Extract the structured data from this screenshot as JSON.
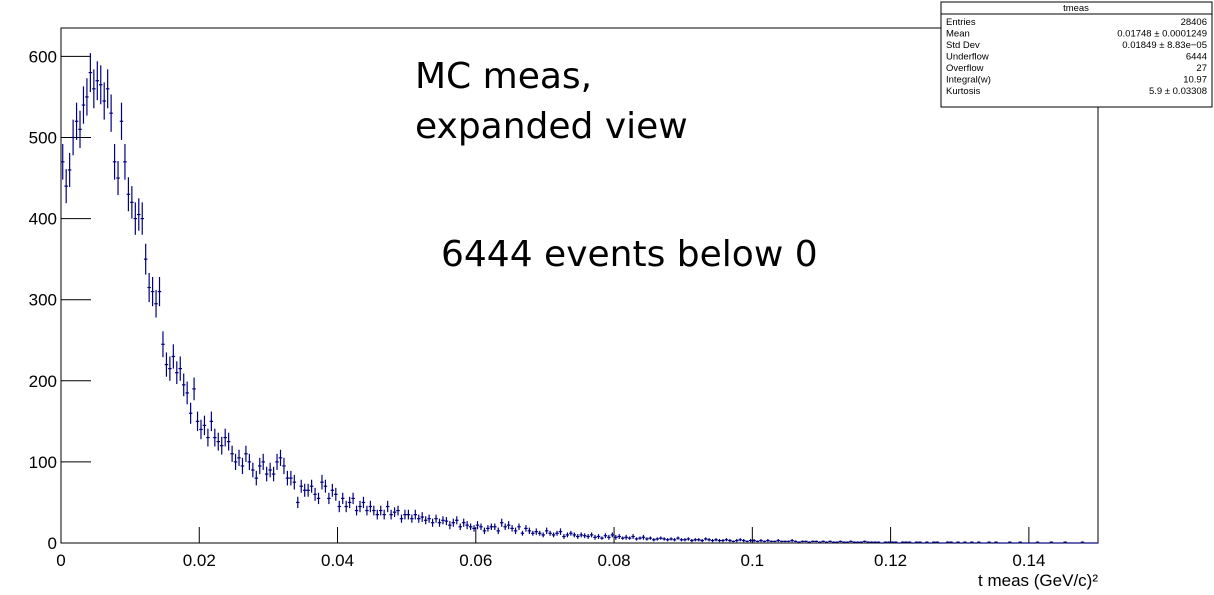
{
  "chart_data": {
    "type": "histogram",
    "annotations": [
      "MC meas,",
      "expanded view",
      "6444 events below 0"
    ],
    "xlabel": "t meas (GeV/c)²",
    "color": "#000080",
    "xlim": [
      0,
      0.15
    ],
    "xticks": [
      0,
      0.02,
      0.04,
      0.06,
      0.08,
      0.1,
      0.12,
      0.14
    ],
    "ylim": [
      0,
      635
    ],
    "yticks": [
      0,
      100,
      200,
      300,
      400,
      500,
      600
    ],
    "stats": {
      "title": "tmeas",
      "rows": [
        [
          "Entries",
          28406
        ],
        [
          "Mean",
          "0.01748 ± 0.0001249"
        ],
        [
          "Std Dev",
          "0.01849 ± 8.83e−05"
        ],
        [
          "Underflow",
          6444
        ],
        [
          "Overflow",
          27
        ],
        [
          "Integral(w)",
          10.97
        ],
        [
          "Kurtosis",
          "5.9 ± 0.03308"
        ]
      ]
    },
    "bins": [
      0,
      0.0005,
      0.001,
      0.0015,
      0.002,
      0.0025,
      0.003,
      0.0035,
      0.004,
      0.0045,
      0.005,
      0.0055,
      0.006,
      0.0065,
      0.007,
      0.0075,
      0.008,
      0.0085,
      0.009,
      0.0095,
      0.01,
      0.0105,
      0.011,
      0.0115,
      0.012,
      0.0125,
      0.013,
      0.0135,
      0.014,
      0.0145,
      0.015,
      0.0155,
      0.016,
      0.0165,
      0.017,
      0.0175,
      0.018,
      0.0185,
      0.019,
      0.0195,
      0.02,
      0.0205,
      0.021,
      0.0215,
      0.022,
      0.0225,
      0.023,
      0.0235,
      0.024,
      0.0245,
      0.025,
      0.0255,
      0.026,
      0.0265,
      0.027,
      0.0275,
      0.028,
      0.0285,
      0.029,
      0.0295,
      0.03,
      0.0305,
      0.031,
      0.0315,
      0.032,
      0.0325,
      0.033,
      0.0335,
      0.034,
      0.0345,
      0.035,
      0.0355,
      0.036,
      0.0365,
      0.037,
      0.0375,
      0.038,
      0.0385,
      0.039,
      0.0395,
      0.04,
      0.0405,
      0.041,
      0.0415,
      0.042,
      0.0425,
      0.043,
      0.0435,
      0.044,
      0.0445,
      0.045,
      0.0455,
      0.046,
      0.0465,
      0.047,
      0.0475,
      0.048,
      0.0485,
      0.049,
      0.0495,
      0.05,
      0.0505,
      0.051,
      0.0515,
      0.052,
      0.0525,
      0.053,
      0.0535,
      0.054,
      0.0545,
      0.055,
      0.0555,
      0.056,
      0.0565,
      0.057,
      0.0575,
      0.058,
      0.0585,
      0.059,
      0.0595,
      0.06,
      0.0605,
      0.061,
      0.0615,
      0.062,
      0.0625,
      0.063,
      0.0635,
      0.064,
      0.0645,
      0.065,
      0.0655,
      0.066,
      0.0665,
      0.067,
      0.0675,
      0.068,
      0.0685,
      0.069,
      0.0695,
      0.07,
      0.0705,
      0.071,
      0.0715,
      0.072,
      0.0725,
      0.073,
      0.0735,
      0.074,
      0.0745,
      0.075,
      0.0755,
      0.076,
      0.0765,
      0.077,
      0.0775,
      0.078,
      0.0785,
      0.079,
      0.0795,
      0.08,
      0.0805,
      0.081,
      0.0815,
      0.082,
      0.0825,
      0.083,
      0.0835,
      0.084,
      0.0845,
      0.085,
      0.0855,
      0.086,
      0.0865,
      0.087,
      0.0875,
      0.088,
      0.0885,
      0.089,
      0.0895,
      0.09,
      0.0905,
      0.091,
      0.0915,
      0.092,
      0.0925,
      0.093,
      0.0935,
      0.094,
      0.0945,
      0.095,
      0.0955,
      0.096,
      0.0965,
      0.097,
      0.0975,
      0.098,
      0.0985,
      0.099,
      0.0995,
      0.1,
      0.1005,
      0.101,
      0.1015,
      0.102,
      0.1025,
      0.103,
      0.1035,
      0.104,
      0.1045,
      0.105,
      0.1055,
      0.106,
      0.1065,
      0.107,
      0.1075,
      0.108,
      0.1085,
      0.109,
      0.1095,
      0.11,
      0.1105,
      0.111,
      0.1115,
      0.112,
      0.1125,
      0.113,
      0.1135,
      0.114,
      0.1145,
      0.115,
      0.1155,
      0.116,
      0.1165,
      0.117,
      0.1175,
      0.118,
      0.1185,
      0.119,
      0.1195,
      0.12,
      0.1205,
      0.121,
      0.1215,
      0.122,
      0.1225,
      0.123,
      0.1235,
      0.124,
      0.1245,
      0.125,
      0.1255,
      0.126,
      0.1265,
      0.127,
      0.1275,
      0.128,
      0.1285,
      0.129,
      0.1295,
      0.13,
      0.1305,
      0.131,
      0.1315,
      0.132,
      0.1325,
      0.133,
      0.1335,
      0.134,
      0.1345,
      0.135,
      0.1355,
      0.136,
      0.1365,
      0.137,
      0.1375,
      0.138,
      0.1385,
      0.139,
      0.1395,
      0.14,
      0.1405,
      0.141,
      0.1415,
      0.142,
      0.1425,
      0.143,
      0.1435,
      0.144,
      0.1445,
      0.145,
      0.1455,
      0.146,
      0.1465,
      0.147,
      0.1475,
      0.148,
      0.1485,
      0.149,
      0.1495,
      0.15
    ],
    "values": [
      470,
      440,
      460,
      500,
      520,
      510,
      540,
      550,
      580,
      560,
      570,
      565,
      545,
      560,
      530,
      470,
      450,
      520,
      470,
      430,
      420,
      400,
      405,
      400,
      350,
      315,
      310,
      295,
      310,
      245,
      220,
      215,
      230,
      210,
      215,
      195,
      185,
      160,
      190,
      150,
      140,
      145,
      130,
      150,
      130,
      125,
      120,
      130,
      125,
      110,
      100,
      105,
      95,
      110,
      100,
      90,
      80,
      95,
      100,
      85,
      90,
      85,
      100,
      105,
      95,
      80,
      80,
      75,
      50,
      70,
      65,
      65,
      70,
      60,
      55,
      75,
      70,
      55,
      65,
      60,
      45,
      55,
      45,
      50,
      55,
      40,
      45,
      50,
      40,
      45,
      40,
      35,
      40,
      35,
      45,
      35,
      38,
      40,
      30,
      35,
      35,
      30,
      35,
      30,
      32,
      28,
      30,
      25,
      30,
      25,
      28,
      27,
      22,
      25,
      28,
      20,
      25,
      22,
      20,
      18,
      22,
      20,
      15,
      18,
      20,
      20,
      15,
      25,
      20,
      22,
      18,
      15,
      20,
      12,
      18,
      15,
      12,
      14,
      12,
      10,
      15,
      12,
      10,
      12,
      14,
      8,
      10,
      12,
      10,
      8,
      10,
      9,
      8,
      10,
      7,
      8,
      6,
      9,
      7,
      10,
      7,
      8,
      6,
      7,
      6,
      8,
      5,
      6,
      7,
      5,
      6,
      4,
      5,
      6,
      5,
      4,
      5,
      4,
      6,
      4,
      4,
      5,
      3,
      4,
      4,
      3,
      5,
      4,
      3,
      4,
      3,
      3,
      4,
      3,
      2,
      3,
      4,
      3,
      2,
      3,
      3,
      2,
      3,
      2,
      3,
      2,
      2,
      3,
      2,
      2,
      2,
      3,
      2,
      1,
      2,
      2,
      1,
      2,
      2,
      1,
      2,
      1,
      2,
      1,
      1,
      2,
      1,
      1,
      2,
      1,
      1,
      1,
      2,
      1,
      1,
      1,
      1,
      0,
      1,
      1,
      1,
      1,
      0,
      1,
      1,
      1,
      0,
      1,
      1,
      0,
      1,
      0,
      1,
      1,
      0,
      0,
      1,
      1,
      0,
      1,
      0,
      1,
      0,
      1,
      0,
      1,
      0,
      0,
      1,
      0,
      1,
      0,
      0,
      0,
      1,
      0,
      0,
      1,
      0,
      0,
      0,
      0,
      1,
      0,
      0,
      0,
      1,
      0,
      0,
      0,
      1,
      0,
      0,
      0,
      0,
      1,
      0,
      0,
      0,
      0
    ],
    "errors": [
      22,
      21,
      21,
      22,
      23,
      23,
      23,
      23,
      24,
      24,
      24,
      24,
      23,
      24,
      23,
      22,
      21,
      23,
      22,
      21,
      20,
      20,
      20,
      20,
      19,
      18,
      18,
      17,
      18,
      16,
      15,
      15,
      15,
      14,
      15,
      14,
      14,
      13,
      14,
      12,
      12,
      12,
      11,
      12,
      11,
      11,
      11,
      11,
      11,
      10,
      10,
      10,
      10,
      10,
      10,
      9,
      9,
      10,
      10,
      9,
      9,
      9,
      10,
      10,
      10,
      9,
      9,
      9,
      7,
      8,
      8,
      8,
      8,
      8,
      7,
      9,
      8,
      7,
      8,
      8,
      7,
      7,
      7,
      7,
      7,
      6,
      7,
      7,
      6,
      7,
      6,
      6,
      6,
      6,
      7,
      6,
      6,
      6,
      5,
      6,
      6,
      5,
      6,
      5,
      6,
      5,
      5,
      5,
      5,
      5,
      5,
      5,
      5,
      5,
      5,
      4,
      5,
      5,
      4,
      4,
      5,
      4,
      4,
      4,
      4,
      4,
      4,
      5,
      4,
      5,
      4,
      4,
      4,
      3,
      4,
      4,
      3,
      4,
      3,
      3,
      4,
      3,
      3,
      3,
      4,
      3,
      3,
      3,
      3,
      3,
      3,
      3,
      3,
      3,
      3,
      3,
      2,
      3,
      3,
      3,
      3,
      3,
      2,
      3,
      2,
      3,
      2,
      2,
      3,
      2,
      2,
      2,
      2,
      2,
      2,
      2,
      2,
      2,
      2,
      2,
      2,
      2,
      2,
      2,
      2,
      2,
      2,
      2,
      2,
      2,
      2,
      2,
      2,
      2,
      1,
      2,
      2,
      2,
      1,
      2,
      2,
      1,
      2,
      1,
      2,
      1,
      1,
      2,
      1,
      1,
      1,
      2,
      1,
      1,
      1,
      1,
      1,
      1,
      1,
      1,
      1,
      1,
      1,
      1,
      1,
      1,
      1,
      1,
      1,
      1,
      1,
      1,
      1,
      1,
      1,
      1,
      1,
      0,
      1,
      1,
      1,
      1,
      0,
      1,
      1,
      1,
      0,
      1,
      1,
      0,
      1,
      0,
      1,
      1,
      0,
      0,
      1,
      1,
      0,
      1,
      0,
      1,
      0,
      1,
      0,
      1,
      0,
      0,
      1,
      0,
      1,
      0,
      0,
      0,
      1,
      0,
      0,
      1,
      0,
      0,
      0,
      0,
      1,
      0,
      0,
      0,
      1,
      0,
      0,
      0,
      1,
      0,
      0,
      0,
      0,
      1,
      0,
      0,
      0,
      0
    ]
  }
}
